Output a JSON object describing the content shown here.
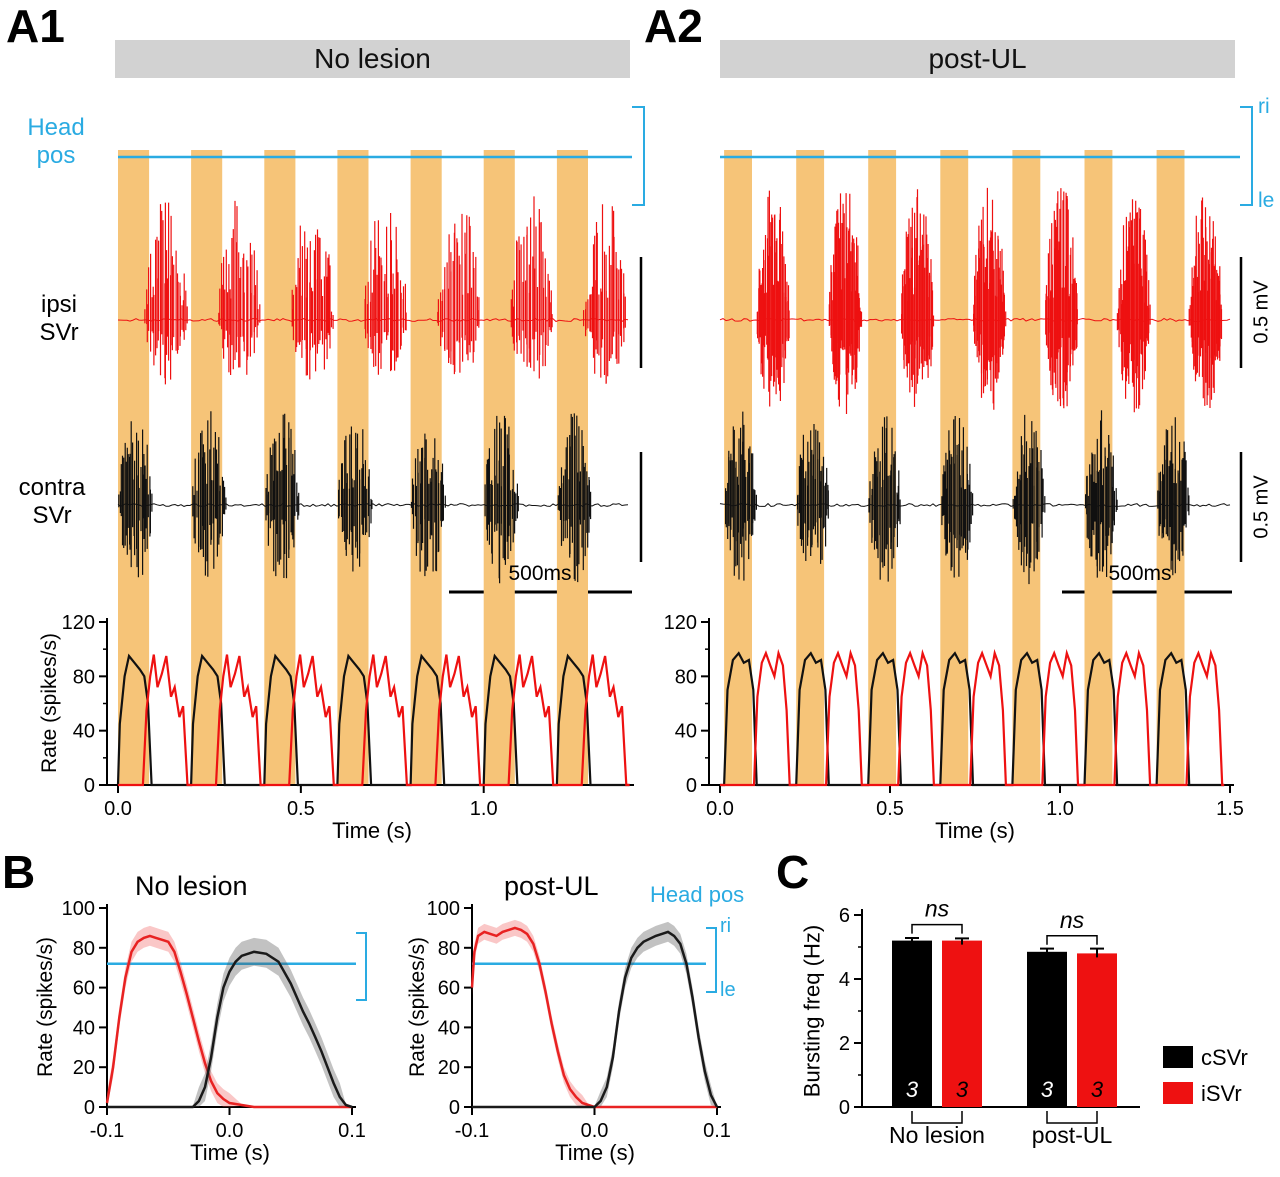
{
  "text": {
    "a1": "A1",
    "a2": "A2",
    "b": "B",
    "c": "C",
    "header_a1": "No lesion",
    "header_a2": "post-UL",
    "head_pos_1": "Head",
    "head_pos_2": "pos",
    "ipsi_1": "ipsi",
    "ipsi_2": "SVr",
    "contra_1": "contra",
    "contra_2": "SVr",
    "rate_axis": "Rate (spikes/s)",
    "time_axis": "Time (s)",
    "scale_500ms": "500ms",
    "scale_05mv": "0.5 mV",
    "ri": "ri",
    "le": "le",
    "b1_title": "No lesion",
    "b2_title": "post-UL",
    "head_pos_inline": "Head pos",
    "bursting_axis": "Bursting freq (Hz)"
  },
  "colors": {
    "band": "#f6c478",
    "cyan": "#2aabe2",
    "red": "#ee1111",
    "black": "#111111",
    "header_bg": "#d2d2d2"
  },
  "chart_data": [
    {
      "id": "A1",
      "type": "line",
      "title": "No lesion",
      "trange": [
        0,
        1.4
      ],
      "xlabel": "Time (s)",
      "xtick_labels": [
        "0.0",
        "0.5",
        "1.0"
      ],
      "xtick_values": [
        0,
        0.5,
        1
      ],
      "rate_ylabel": "Rate (spikes/s)",
      "rate_ylim": [
        0,
        120
      ],
      "rate_yticks": [
        0,
        40,
        80,
        120
      ],
      "rate_yminor": [
        20,
        60,
        100
      ],
      "head_pos": {
        "label": "Head pos",
        "right_label": "ri",
        "left_label": "le",
        "shape": "flat"
      },
      "stim_bands": {
        "offset": 0,
        "period": 0.2,
        "width": 0.085,
        "count": 7
      },
      "traces": [
        {
          "name": "ipsi-SVr",
          "label": "ipsi SVr",
          "color": "#ee1111",
          "burst": {
            "offset": 0,
            "period": 0.2,
            "window": [
              0.073,
              0.19
            ],
            "count": 7,
            "spikes": 34
          }
        },
        {
          "name": "contra-SVr",
          "label": "contra SVr",
          "color": "#111111",
          "burst": {
            "offset": 0,
            "period": 0.2,
            "window": [
              0.002,
              0.095
            ],
            "count": 7,
            "spikes": 30
          }
        }
      ],
      "rate_series": [
        {
          "name": "contra-SVr",
          "color": "#111111",
          "offset": 0,
          "period": 0.2,
          "cycles": 7,
          "cycle_points": [
            [
              0,
              0
            ],
            [
              0.005,
              45
            ],
            [
              0.018,
              80
            ],
            [
              0.03,
              95
            ],
            [
              0.045,
              90
            ],
            [
              0.06,
              85
            ],
            [
              0.072,
              80
            ],
            [
              0.082,
              60
            ],
            [
              0.092,
              0
            ],
            [
              0.199,
              0
            ]
          ]
        },
        {
          "name": "ipsi-SVr",
          "color": "#ee1111",
          "offset": 0,
          "period": 0.2,
          "cycles": 7,
          "cycle_points": [
            [
              0,
              0
            ],
            [
              0.068,
              0
            ],
            [
              0.078,
              55
            ],
            [
              0.088,
              80
            ],
            [
              0.098,
              96
            ],
            [
              0.108,
              72
            ],
            [
              0.12,
              82
            ],
            [
              0.132,
              95
            ],
            [
              0.145,
              65
            ],
            [
              0.155,
              72
            ],
            [
              0.168,
              50
            ],
            [
              0.178,
              58
            ],
            [
              0.19,
              0
            ],
            [
              0.199,
              0
            ]
          ]
        }
      ],
      "scale_bars": {
        "time": "500ms",
        "voltage": "0.5 mV"
      }
    },
    {
      "id": "A2",
      "type": "line",
      "title": "post-UL",
      "trange": [
        0,
        1.5
      ],
      "xlabel": "Time (s)",
      "xtick_labels": [
        "0.0",
        "0.5",
        "1.0",
        "1.5"
      ],
      "xtick_values": [
        0,
        0.5,
        1,
        1.5
      ],
      "rate_ylabel": "Rate (spikes/s)",
      "rate_ylim": [
        0,
        120
      ],
      "rate_yticks": [
        0,
        40,
        80,
        120
      ],
      "rate_yminor": [
        20,
        60,
        100
      ],
      "head_pos": {
        "right_label": "ri",
        "left_label": "le",
        "shape": "flat"
      },
      "stim_bands": {
        "offset": 0.012,
        "period": 0.212,
        "width": 0.082,
        "count": 7
      },
      "traces": [
        {
          "name": "ipsi-SVr",
          "label": "ipsi SVr",
          "color": "#ee1111",
          "burst": {
            "offset": 0,
            "period": 0.212,
            "window": [
              0.108,
              0.205
            ],
            "count": 7,
            "spikes": 46
          }
        },
        {
          "name": "contra-SVr",
          "label": "contra SVr",
          "color": "#111111",
          "burst": {
            "offset": 0,
            "period": 0.212,
            "window": [
              0.014,
              0.108
            ],
            "count": 7,
            "spikes": 32
          }
        }
      ],
      "rate_series": [
        {
          "name": "contra-SVr",
          "color": "#111111",
          "offset": 0,
          "period": 0.212,
          "cycles": 7,
          "cycle_points": [
            [
              0,
              0
            ],
            [
              0.012,
              0
            ],
            [
              0.022,
              70
            ],
            [
              0.038,
              92
            ],
            [
              0.055,
              97
            ],
            [
              0.07,
              90
            ],
            [
              0.085,
              92
            ],
            [
              0.098,
              70
            ],
            [
              0.108,
              0
            ],
            [
              0.211,
              0
            ]
          ]
        },
        {
          "name": "ipsi-SVr",
          "color": "#ee1111",
          "offset": 0,
          "period": 0.212,
          "cycles": 7,
          "cycle_points": [
            [
              0,
              0
            ],
            [
              0.1,
              0
            ],
            [
              0.11,
              65
            ],
            [
              0.123,
              90
            ],
            [
              0.135,
              97
            ],
            [
              0.148,
              88
            ],
            [
              0.16,
              80
            ],
            [
              0.172,
              97
            ],
            [
              0.185,
              88
            ],
            [
              0.196,
              55
            ],
            [
              0.205,
              0
            ],
            [
              0.211,
              0
            ]
          ]
        }
      ],
      "scale_bars": {
        "time": "500ms",
        "voltage": "0.5 mV"
      }
    },
    {
      "id": "B1",
      "type": "line",
      "title": "No lesion",
      "xlabel": "Time (s)",
      "ylabel": "Rate (spikes/s)",
      "xlim": [
        -0.1,
        0.1
      ],
      "ylim": [
        0,
        100
      ],
      "xtick_labels": [
        "-0.1",
        "0.0",
        "0.1"
      ],
      "xtick_values": [
        -0.1,
        0,
        0.1
      ],
      "yticks": [
        0,
        20,
        40,
        60,
        80,
        100
      ],
      "head_pos_value": 72,
      "series": [
        {
          "name": "iSVr",
          "color": "#e82222",
          "band_color": "rgba(240,70,70,0.30)",
          "band": 5,
          "points": [
            [
              -0.1,
              2
            ],
            [
              -0.095,
              20
            ],
            [
              -0.09,
              45
            ],
            [
              -0.085,
              65
            ],
            [
              -0.08,
              78
            ],
            [
              -0.075,
              83
            ],
            [
              -0.07,
              85
            ],
            [
              -0.065,
              86
            ],
            [
              -0.06,
              85
            ],
            [
              -0.055,
              84
            ],
            [
              -0.05,
              83
            ],
            [
              -0.045,
              78
            ],
            [
              -0.04,
              68
            ],
            [
              -0.035,
              57
            ],
            [
              -0.03,
              45
            ],
            [
              -0.025,
              33
            ],
            [
              -0.02,
              22
            ],
            [
              -0.015,
              13
            ],
            [
              -0.01,
              7
            ],
            [
              -0.005,
              4
            ],
            [
              0,
              2
            ],
            [
              0.01,
              1
            ],
            [
              0.02,
              0
            ],
            [
              0.1,
              0
            ]
          ]
        },
        {
          "name": "cSVr",
          "color": "#1a1a1a",
          "band_color": "rgba(80,80,80,0.35)",
          "band": 7,
          "points": [
            [
              -0.1,
              0
            ],
            [
              -0.03,
              0
            ],
            [
              -0.025,
              3
            ],
            [
              -0.02,
              10
            ],
            [
              -0.015,
              25
            ],
            [
              -0.01,
              45
            ],
            [
              -0.005,
              60
            ],
            [
              0,
              68
            ],
            [
              0.005,
              73
            ],
            [
              0.01,
              76
            ],
            [
              0.02,
              78
            ],
            [
              0.03,
              77
            ],
            [
              0.04,
              73
            ],
            [
              0.05,
              62
            ],
            [
              0.055,
              55
            ],
            [
              0.06,
              48
            ],
            [
              0.065,
              42
            ],
            [
              0.07,
              35
            ],
            [
              0.075,
              28
            ],
            [
              0.08,
              20
            ],
            [
              0.085,
              12
            ],
            [
              0.09,
              5
            ],
            [
              0.095,
              1
            ],
            [
              0.1,
              0
            ]
          ]
        }
      ]
    },
    {
      "id": "B2",
      "type": "line",
      "title": "post-UL",
      "xlabel": "Time (s)",
      "ylabel": "Rate (spikes/s)",
      "xlim": [
        -0.1,
        0.1
      ],
      "ylim": [
        0,
        100
      ],
      "xtick_labels": [
        "-0.1",
        "0.0",
        "0.1"
      ],
      "xtick_values": [
        -0.1,
        0,
        0.1
      ],
      "yticks": [
        0,
        20,
        40,
        60,
        80,
        100
      ],
      "head_pos_value": 72,
      "head_pos_label": "Head pos",
      "right_label": "ri",
      "left_label": "le",
      "series": [
        {
          "name": "iSVr",
          "color": "#e82222",
          "band_color": "rgba(240,70,70,0.30)",
          "band": 4,
          "points": [
            [
              -0.1,
              60
            ],
            [
              -0.098,
              78
            ],
            [
              -0.095,
              86
            ],
            [
              -0.09,
              88
            ],
            [
              -0.085,
              87
            ],
            [
              -0.08,
              86
            ],
            [
              -0.075,
              88
            ],
            [
              -0.07,
              89
            ],
            [
              -0.065,
              90
            ],
            [
              -0.06,
              89
            ],
            [
              -0.055,
              87
            ],
            [
              -0.05,
              82
            ],
            [
              -0.045,
              72
            ],
            [
              -0.04,
              58
            ],
            [
              -0.035,
              42
            ],
            [
              -0.03,
              28
            ],
            [
              -0.025,
              16
            ],
            [
              -0.02,
              9
            ],
            [
              -0.015,
              5
            ],
            [
              -0.01,
              2
            ],
            [
              -0.005,
              1
            ],
            [
              0,
              0
            ],
            [
              0.1,
              0
            ]
          ]
        },
        {
          "name": "cSVr",
          "color": "#1a1a1a",
          "band_color": "rgba(80,80,80,0.35)",
          "band": 5,
          "points": [
            [
              -0.1,
              0
            ],
            [
              0,
              0
            ],
            [
              0.005,
              3
            ],
            [
              0.01,
              10
            ],
            [
              0.015,
              25
            ],
            [
              0.02,
              48
            ],
            [
              0.025,
              65
            ],
            [
              0.03,
              75
            ],
            [
              0.035,
              80
            ],
            [
              0.04,
              83
            ],
            [
              0.05,
              86
            ],
            [
              0.055,
              87
            ],
            [
              0.06,
              88
            ],
            [
              0.065,
              86
            ],
            [
              0.07,
              82
            ],
            [
              0.075,
              72
            ],
            [
              0.08,
              55
            ],
            [
              0.085,
              35
            ],
            [
              0.09,
              18
            ],
            [
              0.095,
              6
            ],
            [
              0.1,
              0
            ]
          ]
        }
      ]
    },
    {
      "id": "C",
      "type": "bar",
      "ylabel": "Bursting freq (Hz)",
      "ylim": [
        0,
        6
      ],
      "yticks": [
        0,
        2,
        4,
        6
      ],
      "yminor": [
        1,
        3,
        5
      ],
      "groups": [
        "No lesion",
        "post-UL"
      ],
      "series": [
        {
          "name": "cSVr",
          "color": "#000000",
          "n_color": "#ffffff",
          "values": [
            5.2,
            4.85
          ],
          "errors": [
            0.08,
            0.1
          ],
          "n": [
            "3",
            "3"
          ]
        },
        {
          "name": "iSVr",
          "color": "#ee1111",
          "n_color": "#000000",
          "values": [
            5.2,
            4.8
          ],
          "errors": [
            0.07,
            0.15
          ],
          "n": [
            "3",
            "3"
          ]
        }
      ],
      "annotations": [
        {
          "text": "ns"
        },
        {
          "text": "ns"
        }
      ],
      "legend_position": "right"
    }
  ]
}
